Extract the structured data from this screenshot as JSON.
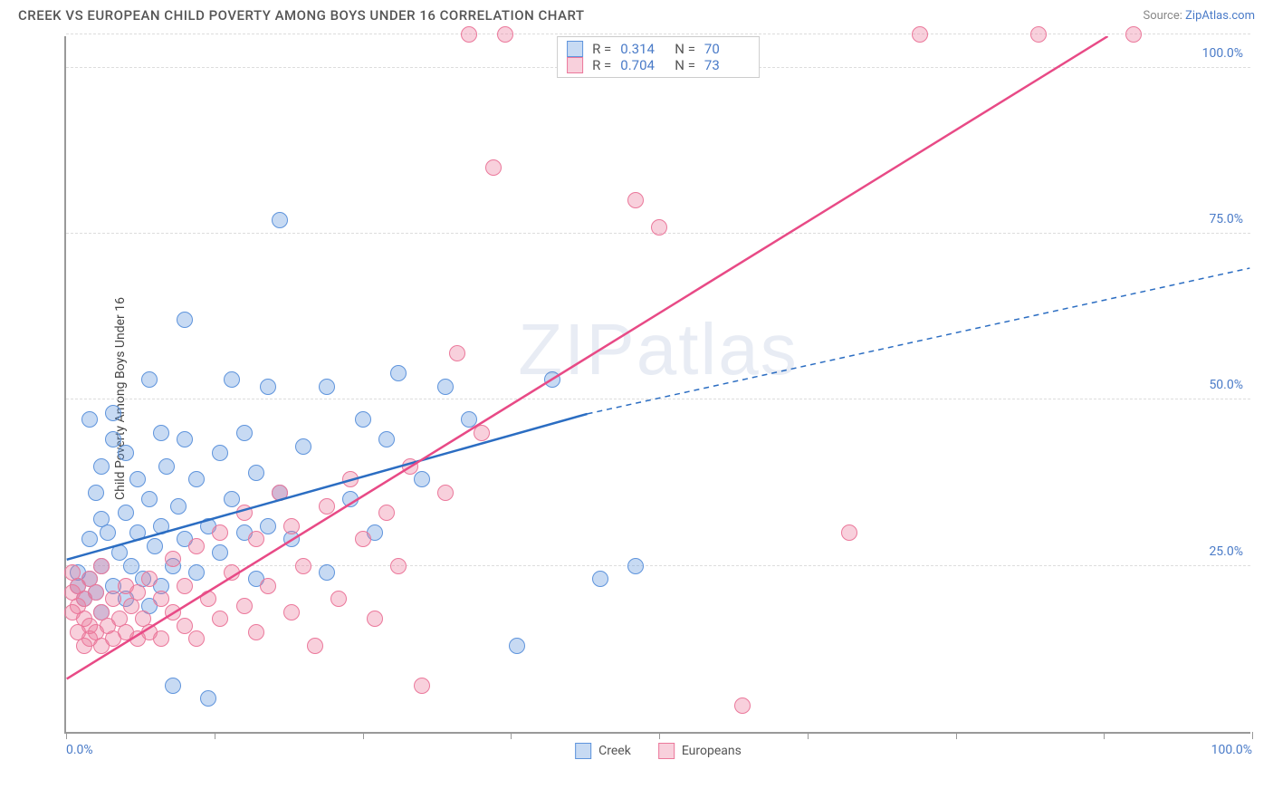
{
  "header": {
    "title": "CREEK VS EUROPEAN CHILD POVERTY AMONG BOYS UNDER 16 CORRELATION CHART",
    "source_label": "Source: ",
    "source_name": "ZipAtlas.com"
  },
  "chart": {
    "type": "scatter",
    "ylabel": "Child Poverty Among Boys Under 16",
    "watermark": "ZIPatlas",
    "background_color": "#ffffff",
    "grid_color": "#dddddd",
    "axis_color": "#999999",
    "tick_label_color": "#4a7bc8",
    "xlim": [
      0,
      100
    ],
    "ylim": [
      0,
      105
    ],
    "xtick_positions": [
      0,
      12.5,
      25,
      37.5,
      50,
      62.5,
      75,
      87.5,
      100
    ],
    "xtick_labels": {
      "0": "0.0%",
      "100": "100.0%"
    },
    "ytick_positions": [
      25,
      50,
      75,
      100,
      105
    ],
    "ytick_labels": {
      "25": "25.0%",
      "50": "50.0%",
      "75": "75.0%",
      "100": "100.0%"
    },
    "point_radius": 9,
    "point_fill_opacity": 0.35,
    "series": [
      {
        "name": "Creek",
        "color_fill": "rgba(94,148,220,0.35)",
        "color_stroke": "#5e94dc",
        "line_color": "#2b6dc2",
        "line_width": 2.5,
        "R": "0.314",
        "N": "70",
        "trend": {
          "x1": 0,
          "y1": 26,
          "x2_solid": 44,
          "y2_solid": 48,
          "x2_dash": 100,
          "y2_dash": 70
        },
        "points": [
          [
            1,
            22
          ],
          [
            1,
            24
          ],
          [
            1.5,
            20
          ],
          [
            2,
            23
          ],
          [
            2,
            29
          ],
          [
            2,
            47
          ],
          [
            2.5,
            21
          ],
          [
            2.5,
            36
          ],
          [
            3,
            18
          ],
          [
            3,
            25
          ],
          [
            3,
            32
          ],
          [
            3,
            40
          ],
          [
            3.5,
            30
          ],
          [
            4,
            22
          ],
          [
            4,
            44
          ],
          [
            4,
            48
          ],
          [
            4.5,
            27
          ],
          [
            5,
            20
          ],
          [
            5,
            33
          ],
          [
            5,
            42
          ],
          [
            5.5,
            25
          ],
          [
            6,
            30
          ],
          [
            6,
            38
          ],
          [
            6.5,
            23
          ],
          [
            7,
            19
          ],
          [
            7,
            35
          ],
          [
            7,
            53
          ],
          [
            7.5,
            28
          ],
          [
            8,
            22
          ],
          [
            8,
            31
          ],
          [
            8,
            45
          ],
          [
            8.5,
            40
          ],
          [
            9,
            25
          ],
          [
            9,
            7
          ],
          [
            9.5,
            34
          ],
          [
            10,
            29
          ],
          [
            10,
            44
          ],
          [
            10,
            62
          ],
          [
            11,
            24
          ],
          [
            11,
            38
          ],
          [
            12,
            31
          ],
          [
            12,
            5
          ],
          [
            13,
            27
          ],
          [
            13,
            42
          ],
          [
            14,
            35
          ],
          [
            14,
            53
          ],
          [
            15,
            30
          ],
          [
            15,
            45
          ],
          [
            16,
            23
          ],
          [
            16,
            39
          ],
          [
            17,
            31
          ],
          [
            17,
            52
          ],
          [
            18,
            77
          ],
          [
            18,
            36
          ],
          [
            19,
            29
          ],
          [
            20,
            43
          ],
          [
            22,
            24
          ],
          [
            22,
            52
          ],
          [
            24,
            35
          ],
          [
            25,
            47
          ],
          [
            26,
            30
          ],
          [
            27,
            44
          ],
          [
            28,
            54
          ],
          [
            30,
            38
          ],
          [
            32,
            52
          ],
          [
            34,
            47
          ],
          [
            38,
            13
          ],
          [
            41,
            53
          ],
          [
            45,
            23
          ],
          [
            48,
            25
          ]
        ]
      },
      {
        "name": "Europeans",
        "color_fill": "rgba(235,120,155,0.35)",
        "color_stroke": "#eb789b",
        "line_color": "#e84a86",
        "line_width": 2.5,
        "R": "0.704",
        "N": "73",
        "trend": {
          "x1": 0,
          "y1": 8,
          "x2_solid": 88,
          "y2_solid": 105,
          "x2_dash": 88,
          "y2_dash": 105
        },
        "points": [
          [
            0.5,
            18
          ],
          [
            0.5,
            21
          ],
          [
            0.5,
            24
          ],
          [
            1,
            15
          ],
          [
            1,
            19
          ],
          [
            1,
            22
          ],
          [
            1.5,
            13
          ],
          [
            1.5,
            17
          ],
          [
            1.5,
            20
          ],
          [
            2,
            14
          ],
          [
            2,
            16
          ],
          [
            2,
            23
          ],
          [
            2.5,
            15
          ],
          [
            2.5,
            21
          ],
          [
            3,
            13
          ],
          [
            3,
            18
          ],
          [
            3,
            25
          ],
          [
            3.5,
            16
          ],
          [
            4,
            14
          ],
          [
            4,
            20
          ],
          [
            4.5,
            17
          ],
          [
            5,
            15
          ],
          [
            5,
            22
          ],
          [
            5.5,
            19
          ],
          [
            6,
            14
          ],
          [
            6,
            21
          ],
          [
            6.5,
            17
          ],
          [
            7,
            15
          ],
          [
            7,
            23
          ],
          [
            8,
            14
          ],
          [
            8,
            20
          ],
          [
            9,
            18
          ],
          [
            9,
            26
          ],
          [
            10,
            16
          ],
          [
            10,
            22
          ],
          [
            11,
            14
          ],
          [
            11,
            28
          ],
          [
            12,
            20
          ],
          [
            13,
            17
          ],
          [
            13,
            30
          ],
          [
            14,
            24
          ],
          [
            15,
            19
          ],
          [
            15,
            33
          ],
          [
            16,
            15
          ],
          [
            16,
            29
          ],
          [
            17,
            22
          ],
          [
            18,
            36
          ],
          [
            19,
            18
          ],
          [
            19,
            31
          ],
          [
            20,
            25
          ],
          [
            21,
            13
          ],
          [
            22,
            34
          ],
          [
            23,
            20
          ],
          [
            24,
            38
          ],
          [
            25,
            29
          ],
          [
            26,
            17
          ],
          [
            27,
            33
          ],
          [
            28,
            25
          ],
          [
            29,
            40
          ],
          [
            30,
            7
          ],
          [
            32,
            36
          ],
          [
            33,
            57
          ],
          [
            34,
            105
          ],
          [
            35,
            45
          ],
          [
            36,
            85
          ],
          [
            37,
            105
          ],
          [
            48,
            80
          ],
          [
            50,
            76
          ],
          [
            57,
            4
          ],
          [
            66,
            30
          ],
          [
            72,
            105
          ],
          [
            82,
            105
          ],
          [
            90,
            105
          ]
        ]
      }
    ],
    "legend_bottom": [
      {
        "label": "Creek",
        "fill": "rgba(94,148,220,0.35)",
        "stroke": "#5e94dc"
      },
      {
        "label": "Europeans",
        "fill": "rgba(235,120,155,0.35)",
        "stroke": "#eb789b"
      }
    ]
  }
}
